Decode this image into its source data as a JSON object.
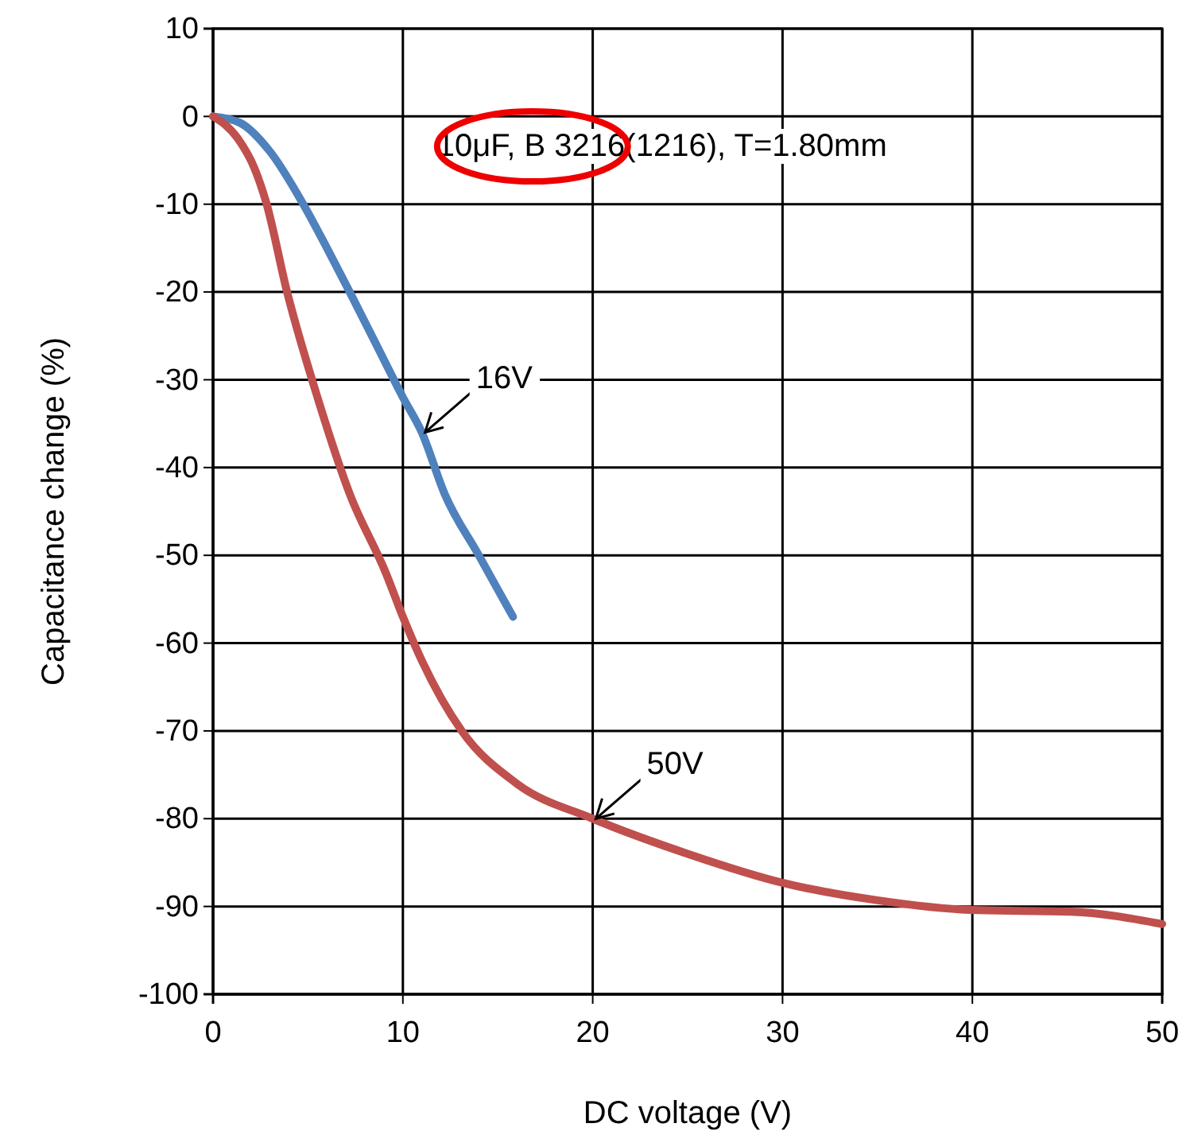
{
  "chart_data": {
    "type": "line",
    "xlabel": "DC voltage (V)",
    "ylabel": "Capacitance change (%)",
    "xlim": [
      0,
      50
    ],
    "xticks": [
      0,
      10,
      20,
      30,
      40,
      50
    ],
    "ylim": [
      -100,
      10
    ],
    "yticks": [
      10,
      0,
      -10,
      -20,
      -30,
      -40,
      -50,
      -60,
      -70,
      -80,
      -90,
      -100
    ],
    "grid": true,
    "annotations": [
      "10μF, B  3216(1216),  T=1.80mm"
    ],
    "series": [
      {
        "name": "16V",
        "color": "#4f81bd",
        "x": [
          0,
          1.4,
          3,
          4.7,
          6,
          7.2,
          8.6,
          10,
          11,
          12.2,
          14,
          15.8
        ],
        "values": [
          0,
          -0.7,
          -4,
          -9.8,
          -15,
          -20,
          -26,
          -32,
          -36,
          -43,
          -50,
          -57
        ]
      },
      {
        "name": "50V",
        "color": "#c0504d",
        "x": [
          0,
          1.3,
          2.2,
          2.8,
          3.9,
          5.5,
          7.2,
          9.1,
          10,
          11,
          13.1,
          16,
          20,
          25,
          30,
          35,
          39.9,
          45.2,
          50
        ],
        "values": [
          0,
          -2.5,
          -6,
          -9.8,
          -20,
          -32,
          -43,
          -52,
          -57,
          -62,
          -70,
          -76,
          -80,
          -84,
          -87.3,
          -89.3,
          -90.4,
          -90.6,
          -92
        ]
      }
    ]
  }
}
